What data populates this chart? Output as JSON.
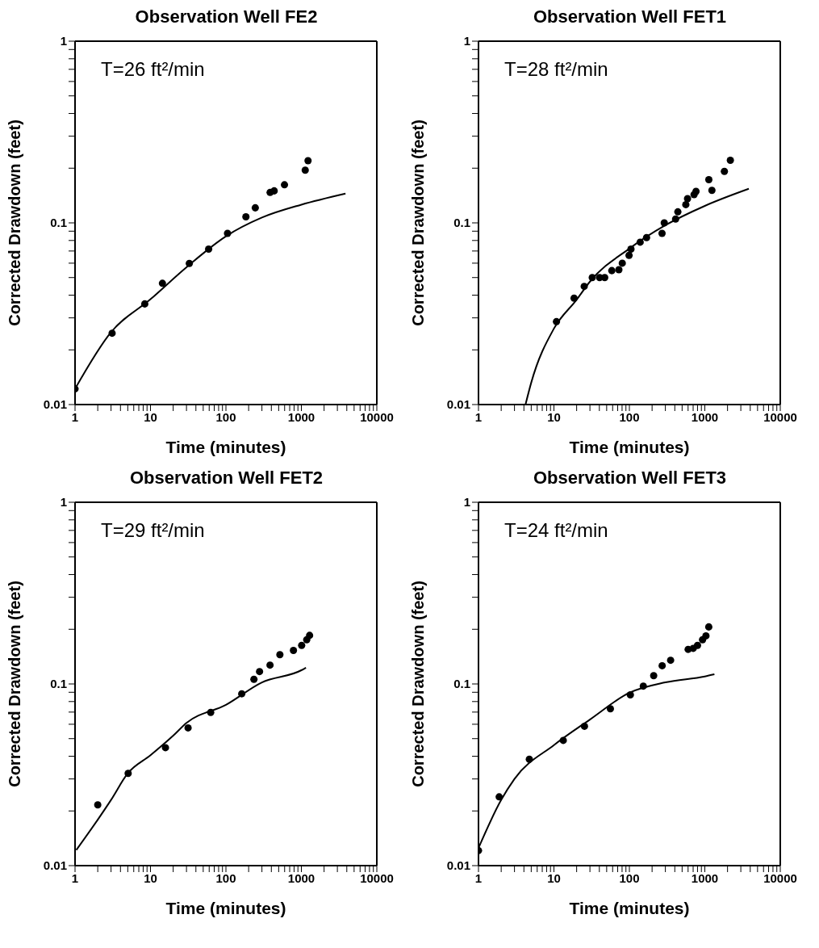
{
  "chart_data": [
    {
      "type": "scatter",
      "title": "Observation Well FE2",
      "xlabel": "Time (minutes)",
      "ylabel": "Corrected Drawdown (feet)",
      "annotations": [
        "T=26 ft²/min"
      ],
      "log": "xy",
      "grid": false,
      "marker": "circle",
      "xlim": [
        1,
        10000
      ],
      "ylim": [
        0.01,
        1
      ],
      "xticks": [
        1,
        {
          "value": 2,
          "label": null
        },
        {
          "value": 3,
          "label": null
        },
        {
          "value": 4,
          "label": null
        },
        {
          "value": 5,
          "label": null
        },
        {
          "value": 6,
          "label": null
        },
        {
          "value": 7,
          "label": null
        },
        {
          "value": 8,
          "label": null
        },
        {
          "value": 9,
          "label": null
        },
        10,
        {
          "value": 20,
          "label": null
        },
        {
          "value": 30,
          "label": null
        },
        {
          "value": 40,
          "label": null
        },
        {
          "value": 50,
          "label": null
        },
        {
          "value": 60,
          "label": null
        },
        {
          "value": 70,
          "label": null
        },
        {
          "value": 80,
          "label": null
        },
        {
          "value": 90,
          "label": null
        },
        100,
        {
          "value": 200,
          "label": null
        },
        {
          "value": 300,
          "label": null
        },
        {
          "value": 400,
          "label": null
        },
        {
          "value": 500,
          "label": null
        },
        {
          "value": 600,
          "label": null
        },
        {
          "value": 700,
          "label": null
        },
        {
          "value": 800,
          "label": null
        },
        {
          "value": 900,
          "label": null
        },
        1000,
        {
          "value": 2000,
          "label": null
        },
        {
          "value": 3000,
          "label": null
        },
        {
          "value": 4000,
          "label": null
        },
        {
          "value": 5000,
          "label": null
        },
        {
          "value": 6000,
          "label": null
        },
        {
          "value": 7000,
          "label": null
        },
        {
          "value": 8000,
          "label": null
        },
        {
          "value": 9000,
          "label": null
        },
        10000
      ],
      "yticks": [
        0.01,
        {
          "value": 0.02,
          "label": null
        },
        {
          "value": 0.03,
          "label": null
        },
        {
          "value": 0.04,
          "label": null
        },
        {
          "value": 0.05,
          "label": null
        },
        {
          "value": 0.06,
          "label": null
        },
        {
          "value": 0.07,
          "label": null
        },
        {
          "value": 0.08,
          "label": null
        },
        {
          "value": 0.09,
          "label": null
        },
        0.1,
        {
          "value": 0.2,
          "label": null
        },
        {
          "value": 0.3,
          "label": null
        },
        {
          "value": 0.4,
          "label": null
        },
        {
          "value": 0.5,
          "label": null
        },
        {
          "value": 0.6,
          "label": null
        },
        {
          "value": 0.7,
          "label": null
        },
        {
          "value": 0.8,
          "label": null
        },
        {
          "value": 0.9,
          "label": null
        },
        1
      ],
      "series": [
        {
          "color": "#000000",
          "x": [
            1,
            3.1,
            8.4,
            14.4,
            32.7,
            59,
            105,
            184,
            245,
            385,
            436,
            597,
            1125,
            1225
          ],
          "values": [
            0.0122,
            0.0247,
            0.0358,
            0.0465,
            0.0598,
            0.0717,
            0.0875,
            0.108,
            0.121,
            0.147,
            0.15,
            0.162,
            0.195,
            0.22
          ]
        },
        {
          "type": "line",
          "marker": "none",
          "line_style": "solid",
          "color": "#000000",
          "x": [
            1,
            3,
            10,
            30,
            100,
            300,
            1000,
            3845
          ],
          "values": [
            0.0122,
            0.025,
            0.038,
            0.057,
            0.0844,
            0.107,
            0.126,
            0.145
          ]
        }
      ]
    },
    {
      "type": "scatter",
      "title": "Observation Well FET1",
      "xlabel": "Time (minutes)",
      "ylabel": "Corrected Drawdown (feet)",
      "annotations": [
        "T=28 ft²/min"
      ],
      "log": "xy",
      "grid": false,
      "marker": "circle",
      "xlim": [
        1,
        10000
      ],
      "ylim": [
        0.01,
        1
      ],
      "xticks": [
        1,
        {
          "value": 2,
          "label": null
        },
        {
          "value": 3,
          "label": null
        },
        {
          "value": 4,
          "label": null
        },
        {
          "value": 5,
          "label": null
        },
        {
          "value": 6,
          "label": null
        },
        {
          "value": 7,
          "label": null
        },
        {
          "value": 8,
          "label": null
        },
        {
          "value": 9,
          "label": null
        },
        10,
        {
          "value": 20,
          "label": null
        },
        {
          "value": 30,
          "label": null
        },
        {
          "value": 40,
          "label": null
        },
        {
          "value": 50,
          "label": null
        },
        {
          "value": 60,
          "label": null
        },
        {
          "value": 70,
          "label": null
        },
        {
          "value": 80,
          "label": null
        },
        {
          "value": 90,
          "label": null
        },
        100,
        {
          "value": 200,
          "label": null
        },
        {
          "value": 300,
          "label": null
        },
        {
          "value": 400,
          "label": null
        },
        {
          "value": 500,
          "label": null
        },
        {
          "value": 600,
          "label": null
        },
        {
          "value": 700,
          "label": null
        },
        {
          "value": 800,
          "label": null
        },
        {
          "value": 900,
          "label": null
        },
        1000,
        {
          "value": 2000,
          "label": null
        },
        {
          "value": 3000,
          "label": null
        },
        {
          "value": 4000,
          "label": null
        },
        {
          "value": 5000,
          "label": null
        },
        {
          "value": 6000,
          "label": null
        },
        {
          "value": 7000,
          "label": null
        },
        {
          "value": 8000,
          "label": null
        },
        {
          "value": 9000,
          "label": null
        },
        10000
      ],
      "yticks": [
        0.01,
        {
          "value": 0.02,
          "label": null
        },
        {
          "value": 0.03,
          "label": null
        },
        {
          "value": 0.04,
          "label": null
        },
        {
          "value": 0.05,
          "label": null
        },
        {
          "value": 0.06,
          "label": null
        },
        {
          "value": 0.07,
          "label": null
        },
        {
          "value": 0.08,
          "label": null
        },
        {
          "value": 0.09,
          "label": null
        },
        0.1,
        {
          "value": 0.2,
          "label": null
        },
        {
          "value": 0.3,
          "label": null
        },
        {
          "value": 0.4,
          "label": null
        },
        {
          "value": 0.5,
          "label": null
        },
        {
          "value": 0.6,
          "label": null
        },
        {
          "value": 0.7,
          "label": null
        },
        {
          "value": 0.8,
          "label": null
        },
        {
          "value": 0.9,
          "label": null
        },
        1
      ],
      "series": [
        {
          "color": "#000000",
          "x": [
            10.8,
            18.5,
            25.2,
            32.2,
            40.3,
            47.1,
            58.5,
            72.6,
            80.5,
            99,
            105,
            139,
            169,
            271,
            290,
            410,
            439,
            560,
            590,
            720,
            764,
            1130,
            1242,
            1817,
            2180
          ],
          "values": [
            0.0286,
            0.0385,
            0.0447,
            0.05,
            0.05,
            0.05,
            0.0546,
            0.0552,
            0.06,
            0.0662,
            0.0717,
            0.0783,
            0.083,
            0.0875,
            0.1,
            0.105,
            0.115,
            0.126,
            0.136,
            0.143,
            0.149,
            0.173,
            0.151,
            0.192,
            0.221
          ]
        },
        {
          "type": "line",
          "marker": "none",
          "line_style": "solid",
          "color": "#000000",
          "x": [
            4.2,
            5,
            10,
            20,
            30,
            100,
            300,
            1000,
            3828
          ],
          "values": [
            0.01,
            0.0132,
            0.0262,
            0.0378,
            0.0475,
            0.0722,
            0.097,
            0.124,
            0.154
          ]
        }
      ]
    },
    {
      "type": "scatter",
      "title": "Observation Well FET2",
      "xlabel": "Time (minutes)",
      "ylabel": "Corrected Drawdown (feet)",
      "annotations": [
        "T=29 ft²/min"
      ],
      "log": "xy",
      "grid": false,
      "marker": "circle",
      "xlim": [
        1,
        10000
      ],
      "ylim": [
        0.01,
        1
      ],
      "xticks": [
        1,
        {
          "value": 2,
          "label": null
        },
        {
          "value": 3,
          "label": null
        },
        {
          "value": 4,
          "label": null
        },
        {
          "value": 5,
          "label": null
        },
        {
          "value": 6,
          "label": null
        },
        {
          "value": 7,
          "label": null
        },
        {
          "value": 8,
          "label": null
        },
        {
          "value": 9,
          "label": null
        },
        10,
        {
          "value": 20,
          "label": null
        },
        {
          "value": 30,
          "label": null
        },
        {
          "value": 40,
          "label": null
        },
        {
          "value": 50,
          "label": null
        },
        {
          "value": 60,
          "label": null
        },
        {
          "value": 70,
          "label": null
        },
        {
          "value": 80,
          "label": null
        },
        {
          "value": 90,
          "label": null
        },
        100,
        {
          "value": 200,
          "label": null
        },
        {
          "value": 300,
          "label": null
        },
        {
          "value": 400,
          "label": null
        },
        {
          "value": 500,
          "label": null
        },
        {
          "value": 600,
          "label": null
        },
        {
          "value": 700,
          "label": null
        },
        {
          "value": 800,
          "label": null
        },
        {
          "value": 900,
          "label": null
        },
        1000,
        {
          "value": 2000,
          "label": null
        },
        {
          "value": 3000,
          "label": null
        },
        {
          "value": 4000,
          "label": null
        },
        {
          "value": 5000,
          "label": null
        },
        {
          "value": 6000,
          "label": null
        },
        {
          "value": 7000,
          "label": null
        },
        {
          "value": 8000,
          "label": null
        },
        {
          "value": 9000,
          "label": null
        },
        10000
      ],
      "yticks": [
        0.01,
        {
          "value": 0.02,
          "label": null
        },
        {
          "value": 0.03,
          "label": null
        },
        {
          "value": 0.04,
          "label": null
        },
        {
          "value": 0.05,
          "label": null
        },
        {
          "value": 0.06,
          "label": null
        },
        {
          "value": 0.07,
          "label": null
        },
        {
          "value": 0.08,
          "label": null
        },
        {
          "value": 0.09,
          "label": null
        },
        0.1,
        {
          "value": 0.2,
          "label": null
        },
        {
          "value": 0.3,
          "label": null
        },
        {
          "value": 0.4,
          "label": null
        },
        {
          "value": 0.5,
          "label": null
        },
        {
          "value": 0.6,
          "label": null
        },
        {
          "value": 0.7,
          "label": null
        },
        {
          "value": 0.8,
          "label": null
        },
        {
          "value": 0.9,
          "label": null
        },
        1
      ],
      "series": [
        {
          "color": "#000000",
          "x": [
            2.0,
            5.06,
            15.8,
            31.5,
            62.8,
            162,
            235,
            279,
            384,
            519,
            785,
            1009,
            1178,
            1285
          ],
          "values": [
            0.0216,
            0.0322,
            0.0446,
            0.0573,
            0.0697,
            0.0883,
            0.106,
            0.117,
            0.127,
            0.145,
            0.153,
            0.163,
            0.175,
            0.185
          ]
        },
        {
          "type": "line",
          "marker": "none",
          "line_style": "solid",
          "color": "#000000",
          "x": [
            1.04,
            2,
            3,
            5,
            10,
            20,
            30,
            100,
            300,
            1000,
            1150
          ],
          "values": [
            0.0122,
            0.0179,
            0.023,
            0.0322,
            0.0405,
            0.0519,
            0.061,
            0.0767,
            0.102,
            0.119,
            0.123
          ]
        }
      ]
    },
    {
      "type": "scatter",
      "title": "Observation Well FET3",
      "xlabel": "Time (minutes)",
      "ylabel": "Corrected Drawdown (feet)",
      "annotations": [
        "T=24 ft²/min"
      ],
      "log": "xy",
      "grid": false,
      "marker": "circle",
      "xlim": [
        1,
        10000
      ],
      "ylim": [
        0.01,
        1
      ],
      "xticks": [
        1,
        {
          "value": 2,
          "label": null
        },
        {
          "value": 3,
          "label": null
        },
        {
          "value": 4,
          "label": null
        },
        {
          "value": 5,
          "label": null
        },
        {
          "value": 6,
          "label": null
        },
        {
          "value": 7,
          "label": null
        },
        {
          "value": 8,
          "label": null
        },
        {
          "value": 9,
          "label": null
        },
        10,
        {
          "value": 20,
          "label": null
        },
        {
          "value": 30,
          "label": null
        },
        {
          "value": 40,
          "label": null
        },
        {
          "value": 50,
          "label": null
        },
        {
          "value": 60,
          "label": null
        },
        {
          "value": 70,
          "label": null
        },
        {
          "value": 80,
          "label": null
        },
        {
          "value": 90,
          "label": null
        },
        100,
        {
          "value": 200,
          "label": null
        },
        {
          "value": 300,
          "label": null
        },
        {
          "value": 400,
          "label": null
        },
        {
          "value": 500,
          "label": null
        },
        {
          "value": 600,
          "label": null
        },
        {
          "value": 700,
          "label": null
        },
        {
          "value": 800,
          "label": null
        },
        {
          "value": 900,
          "label": null
        },
        1000,
        {
          "value": 2000,
          "label": null
        },
        {
          "value": 3000,
          "label": null
        },
        {
          "value": 4000,
          "label": null
        },
        {
          "value": 5000,
          "label": null
        },
        {
          "value": 6000,
          "label": null
        },
        {
          "value": 7000,
          "label": null
        },
        {
          "value": 8000,
          "label": null
        },
        {
          "value": 9000,
          "label": null
        },
        10000
      ],
      "yticks": [
        0.01,
        {
          "value": 0.02,
          "label": null
        },
        {
          "value": 0.03,
          "label": null
        },
        {
          "value": 0.04,
          "label": null
        },
        {
          "value": 0.05,
          "label": null
        },
        {
          "value": 0.06,
          "label": null
        },
        {
          "value": 0.07,
          "label": null
        },
        {
          "value": 0.08,
          "label": null
        },
        {
          "value": 0.09,
          "label": null
        },
        0.1,
        {
          "value": 0.2,
          "label": null
        },
        {
          "value": 0.3,
          "label": null
        },
        {
          "value": 0.4,
          "label": null
        },
        {
          "value": 0.5,
          "label": null
        },
        {
          "value": 0.6,
          "label": null
        },
        {
          "value": 0.7,
          "label": null
        },
        {
          "value": 0.8,
          "label": null
        },
        {
          "value": 0.9,
          "label": null
        },
        1
      ],
      "series": [
        {
          "color": "#000000",
          "x": [
            1,
            1.88,
            4.72,
            13.3,
            25.4,
            56,
            103,
            153,
            210,
            272,
            352,
            601,
            702,
            800,
            933,
            1035,
            1128
          ],
          "values": [
            0.0121,
            0.0239,
            0.0385,
            0.0489,
            0.0585,
            0.073,
            0.0871,
            0.0973,
            0.111,
            0.126,
            0.135,
            0.155,
            0.157,
            0.163,
            0.175,
            0.184,
            0.206
          ]
        },
        {
          "type": "line",
          "marker": "none",
          "line_style": "solid",
          "color": "#000000",
          "x": [
            1,
            2,
            3,
            10,
            30,
            100,
            300,
            1000,
            1340
          ],
          "values": [
            0.0125,
            0.023,
            0.03,
            0.0461,
            0.0637,
            0.0894,
            0.102,
            0.11,
            0.113
          ]
        }
      ]
    }
  ]
}
